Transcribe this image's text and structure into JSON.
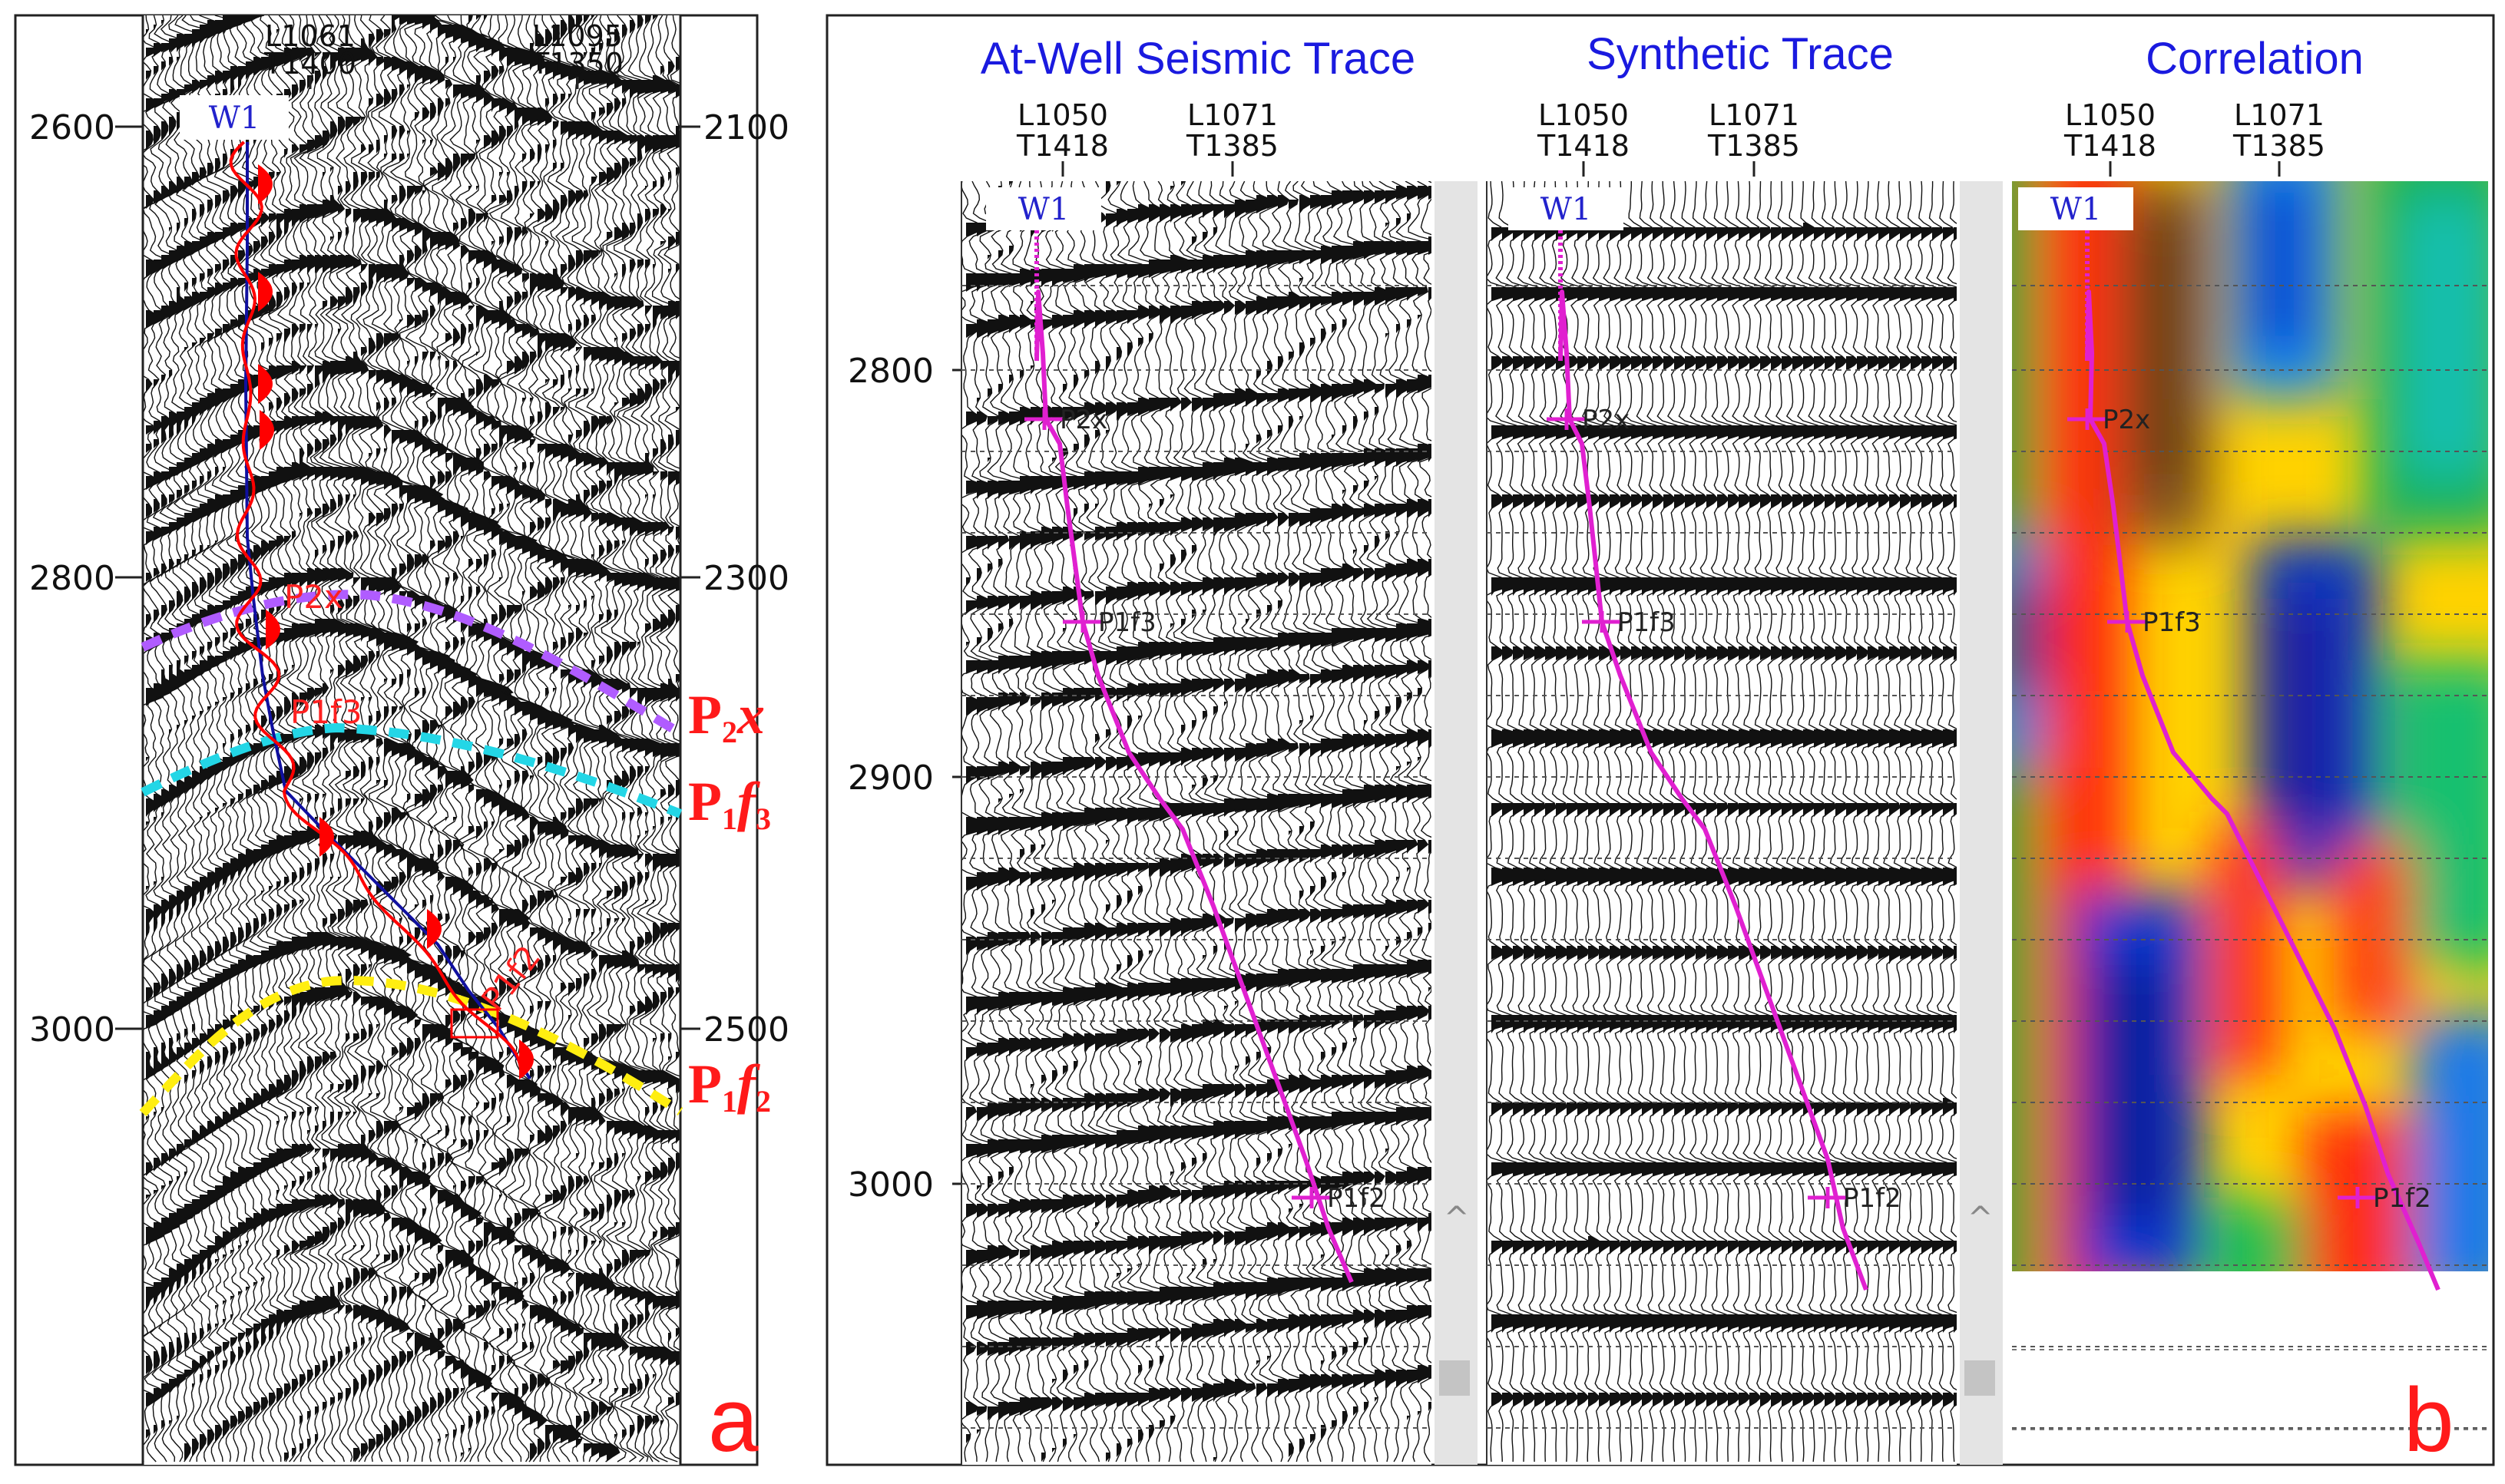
{
  "panel_a": {
    "letter": "a",
    "well": "W1",
    "left_axis_ticks": [
      "2600",
      "2800",
      "3000"
    ],
    "right_axis_ticks": [
      "2100",
      "2300",
      "2500"
    ],
    "top_locations": [
      {
        "line": "L1061",
        "trace": "T1400"
      },
      {
        "line": "L1095",
        "trace": "T1350"
      }
    ],
    "horizon_markers": [
      "P2x",
      "P1f3",
      "P1f2"
    ],
    "horizons": [
      {
        "main": "P",
        "sub": "2",
        "suffix": "x",
        "color": "#b05cff"
      },
      {
        "main": "P",
        "sub": "1",
        "suffix": "f",
        "suffix_sub": "3",
        "color": "#23d6e6"
      },
      {
        "main": "P",
        "sub": "1",
        "suffix": "f",
        "suffix_sub": "2",
        "color": "#ffee10"
      }
    ]
  },
  "panel_b": {
    "letter": "b",
    "depth_ticks": [
      "2800",
      "2900",
      "3000"
    ],
    "tracks": [
      {
        "title": "At-Well Seismic Trace",
        "well": "W1",
        "locations": [
          {
            "line": "L1050",
            "trace": "T1418"
          },
          {
            "line": "L1071",
            "trace": "T1385"
          }
        ],
        "markers": [
          "P2x",
          "P1f3",
          "P1f2"
        ],
        "caret": "^"
      },
      {
        "title": "Synthetic Trace",
        "well": "W1",
        "locations": [
          {
            "line": "L1050",
            "trace": "T1418"
          },
          {
            "line": "L1071",
            "trace": "T1385"
          }
        ],
        "markers": [
          "P2x",
          "P1f3",
          "P1f2"
        ],
        "caret": "^"
      },
      {
        "title": "Correlation",
        "well": "W1",
        "locations": [
          {
            "line": "L1050",
            "trace": "T1418"
          },
          {
            "line": "L1071",
            "trace": "T1385"
          }
        ],
        "markers": [
          "P2x",
          "P1f3",
          "P1f2"
        ]
      }
    ]
  },
  "colors": {
    "title_blue": "#1a1adf",
    "marker_magenta": "#e020d0",
    "label_red": "#ff1a1a",
    "synthetic_red": "#ff0000",
    "well_blue": "#1010a0"
  }
}
